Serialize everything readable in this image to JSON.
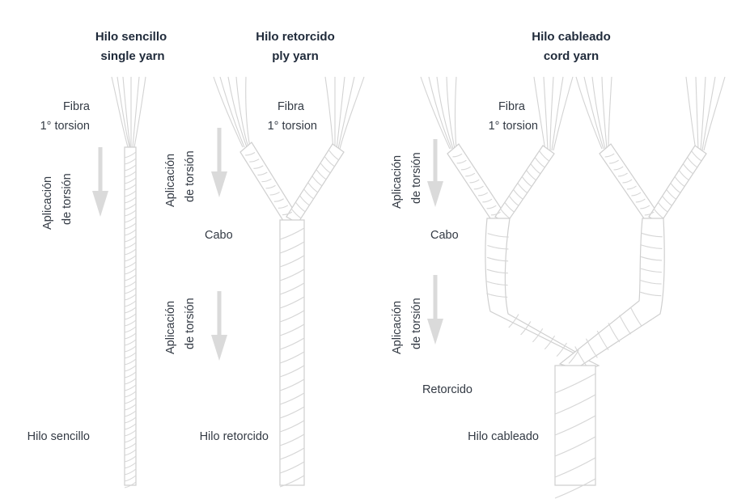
{
  "columns": [
    {
      "title_es": "Hilo sencillo",
      "title_en": "single yarn"
    },
    {
      "title_es": "Hilo retorcido",
      "title_en": "ply yarn"
    },
    {
      "title_es": "Hilo cableado",
      "title_en": "cord yarn"
    }
  ],
  "labels": {
    "fibra": "Fibra",
    "torsion": "1° torsion",
    "aplicacion_1": "Aplicación",
    "aplicacion_2": "de torsión",
    "cabo": "Cabo",
    "retorcido": "Retorcido",
    "hilo_sencillo": "Hilo sencillo",
    "hilo_retorcido": "Hilo retorcido",
    "hilo_cableado": "Hilo cableado"
  },
  "colors": {
    "line": "#cfcfcf",
    "arrow": "#dadada",
    "text": "#333a44",
    "title": "#1f2a3a"
  }
}
